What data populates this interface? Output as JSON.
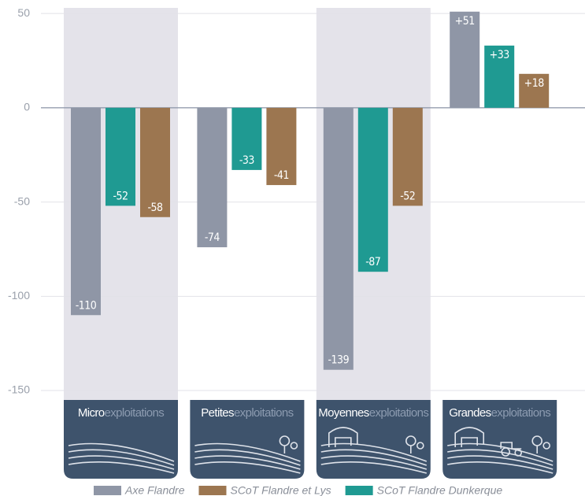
{
  "chart_data": {
    "type": "bar",
    "categories": [
      [
        "Micro",
        "exploitations"
      ],
      [
        "Petites",
        "exploitations"
      ],
      [
        "Moyennes",
        "exploitations"
      ],
      [
        "Grandes",
        "exploitations"
      ]
    ],
    "series": [
      {
        "name": "Axe Flandre",
        "color": "#8f96a6",
        "values": [
          -110,
          -74,
          -139,
          51
        ],
        "value_labels": [
          "-110",
          "-74",
          "-139",
          "+51"
        ]
      },
      {
        "name": "SCoT Flandre Dunkerque",
        "color": "#1f9a92",
        "values": [
          -52,
          -33,
          -87,
          33
        ],
        "value_labels": [
          "-52",
          "-33",
          "-87",
          "+33"
        ]
      },
      {
        "name": "SCoT Flandre et Lys",
        "color": "#9c7650",
        "values": [
          -58,
          -41,
          -52,
          18
        ],
        "value_labels": [
          "-58",
          "-41",
          "-52",
          "+18"
        ]
      }
    ],
    "legend_order": [
      0,
      2,
      1
    ],
    "ylim": [
      -155,
      53
    ],
    "yticks": [
      -150,
      -100,
      -50,
      0,
      50
    ],
    "grid": true
  }
}
